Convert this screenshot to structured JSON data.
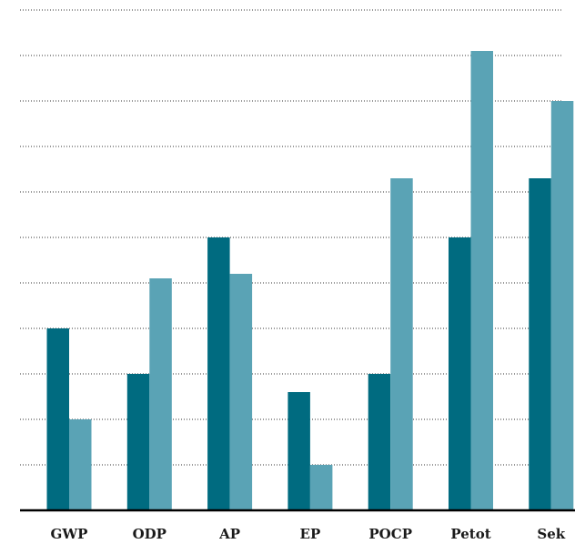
{
  "chart_data": {
    "type": "bar",
    "categories": [
      "GWP",
      "ODP",
      "AP",
      "EP",
      "POCP",
      "Petot",
      "Sek"
    ],
    "series": [
      {
        "color": "#006b80",
        "values": [
          4,
          3,
          6,
          2.6,
          3,
          6,
          7.3
        ]
      },
      {
        "color": "#5aa3b5",
        "values": [
          2,
          5.1,
          5.2,
          1,
          7.3,
          10.1,
          9
        ]
      }
    ],
    "ylim": [
      0,
      11
    ],
    "yticks": [
      1,
      2,
      3,
      4,
      5,
      6,
      7,
      8,
      9,
      10,
      11
    ],
    "grid": true
  }
}
